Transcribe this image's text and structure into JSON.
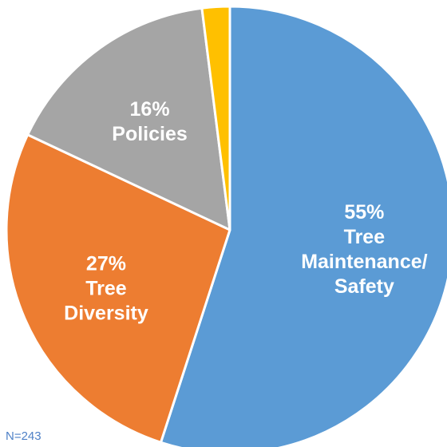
{
  "chart_data": {
    "type": "pie",
    "slices": [
      {
        "label_lines": [
          "55%",
          "Tree",
          "Maintenance/",
          "Safety"
        ],
        "value": 55,
        "color": "#5b9bd5"
      },
      {
        "label_lines": [
          "27%",
          "Tree",
          "Diversity"
        ],
        "value": 27,
        "color": "#ed7d31"
      },
      {
        "label_lines": [
          "16%",
          "Policies"
        ],
        "value": 16,
        "color": "#a5a5a5"
      },
      {
        "label_lines": [],
        "value": 2,
        "color": "#ffc000"
      }
    ],
    "start_angle_deg": 0,
    "direction": "clockwise",
    "slice_border_color": "#ffffff"
  },
  "note": "N=243"
}
